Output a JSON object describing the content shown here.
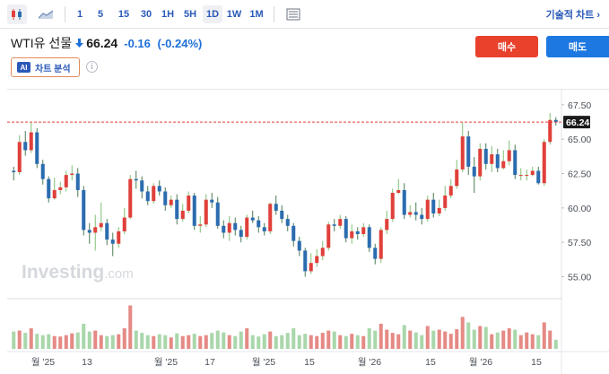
{
  "toolbar": {
    "timeframes": [
      "1",
      "5",
      "15",
      "30",
      "1H",
      "5H",
      "1D",
      "1W",
      "1M"
    ],
    "active_timeframe": "1D",
    "right_label": "기술적 차트 ›"
  },
  "instrument": {
    "name": "WTI유 선물",
    "direction": "down",
    "price": "66.24",
    "change": "-0.16",
    "change_pct": "(-0.24%)"
  },
  "actions": {
    "buy_label": "매수",
    "sell_label": "매도"
  },
  "analysis": {
    "badge": "AI",
    "label": "차트 분석"
  },
  "colors": {
    "up": "#e0403a",
    "down": "#2b6cb0",
    "price_line": "#e0403a",
    "link": "#2a59b8",
    "buy": "#e8412c",
    "sell": "#1e78e2"
  },
  "watermark": {
    "brand": "Investing",
    "suffix": ".com"
  },
  "chart_data": {
    "type": "candlestick",
    "y_ticks": [
      "67.50",
      "65.00",
      "62.50",
      "60.00",
      "57.50",
      "55.00"
    ],
    "y_tick_values": [
      67.5,
      65.0,
      62.5,
      60.0,
      57.5,
      55.0
    ],
    "ylim": [
      53.6,
      68.6
    ],
    "last_price": 66.24,
    "last_price_label": "66.24",
    "x_labels": [
      "월 '25",
      "13",
      "월 '25",
      "17",
      "월 '25",
      "15",
      "월 '26",
      "15",
      "월 '26",
      "15"
    ],
    "candles": [
      [
        62.7,
        62.6,
        63.0,
        62.0
      ],
      [
        62.6,
        64.8,
        65.3,
        62.4
      ],
      [
        64.8,
        64.2,
        65.6,
        63.8
      ],
      [
        64.2,
        65.5,
        66.2,
        64.0
      ],
      [
        65.5,
        63.2,
        65.8,
        62.9
      ],
      [
        63.2,
        62.1,
        63.5,
        61.7
      ],
      [
        62.1,
        60.7,
        62.3,
        60.4
      ],
      [
        60.7,
        61.3,
        62.2,
        60.6
      ],
      [
        61.3,
        61.5,
        61.9,
        61.0
      ],
      [
        61.5,
        62.4,
        62.7,
        61.2
      ],
      [
        62.4,
        62.5,
        63.1,
        62.0
      ],
      [
        62.5,
        61.3,
        62.9,
        60.8
      ],
      [
        61.3,
        58.4,
        61.6,
        58.0
      ],
      [
        58.4,
        58.2,
        58.9,
        57.4
      ],
      [
        58.2,
        58.6,
        59.5,
        56.9
      ],
      [
        58.6,
        58.9,
        60.4,
        58.3
      ],
      [
        58.9,
        57.7,
        59.2,
        57.3
      ],
      [
        57.7,
        57.4,
        58.2,
        56.5
      ],
      [
        57.4,
        58.3,
        58.6,
        57.1
      ],
      [
        58.3,
        59.3,
        60.0,
        58.1
      ],
      [
        59.3,
        62.1,
        62.4,
        59.2
      ],
      [
        62.1,
        62.0,
        62.7,
        61.4
      ],
      [
        62.0,
        61.2,
        62.3,
        60.7
      ],
      [
        61.2,
        60.5,
        61.6,
        60.2
      ],
      [
        60.5,
        61.6,
        61.8,
        60.3
      ],
      [
        61.6,
        61.2,
        62.0,
        60.9
      ],
      [
        61.2,
        60.2,
        61.5,
        59.8
      ],
      [
        60.2,
        60.6,
        60.9,
        60.0
      ],
      [
        60.6,
        59.2,
        61.0,
        58.8
      ],
      [
        59.2,
        59.8,
        60.3,
        59.0
      ],
      [
        59.8,
        60.9,
        61.2,
        59.6
      ],
      [
        60.9,
        58.7,
        61.1,
        58.4
      ],
      [
        58.7,
        58.8,
        59.4,
        58.2
      ],
      [
        58.8,
        60.6,
        61.0,
        58.6
      ],
      [
        60.6,
        60.4,
        61.1,
        60.0
      ],
      [
        60.4,
        58.7,
        60.8,
        58.5
      ],
      [
        58.7,
        58.2,
        59.1,
        57.8
      ],
      [
        58.2,
        58.9,
        59.4,
        57.6
      ],
      [
        58.9,
        58.4,
        59.3,
        58.0
      ],
      [
        58.4,
        57.9,
        58.7,
        57.5
      ],
      [
        57.9,
        59.3,
        59.5,
        57.7
      ],
      [
        59.3,
        59.1,
        59.8,
        58.9
      ],
      [
        59.1,
        58.6,
        59.4,
        58.2
      ],
      [
        58.6,
        58.3,
        58.9,
        58.0
      ],
      [
        58.3,
        60.3,
        60.4,
        58.1
      ],
      [
        60.3,
        59.8,
        60.9,
        59.5
      ],
      [
        59.8,
        59.2,
        60.2,
        58.9
      ],
      [
        59.2,
        58.7,
        59.5,
        58.3
      ],
      [
        58.7,
        57.6,
        58.9,
        57.2
      ],
      [
        57.6,
        56.9,
        57.9,
        56.5
      ],
      [
        56.9,
        55.4,
        57.1,
        55.0
      ],
      [
        55.4,
        56.0,
        56.7,
        55.2
      ],
      [
        56.0,
        56.5,
        57.0,
        55.7
      ],
      [
        56.5,
        57.1,
        57.6,
        56.2
      ],
      [
        57.1,
        58.8,
        59.0,
        56.9
      ],
      [
        58.8,
        58.7,
        59.2,
        58.3
      ],
      [
        58.7,
        59.2,
        59.5,
        58.5
      ],
      [
        59.2,
        57.8,
        59.4,
        57.5
      ],
      [
        57.8,
        58.3,
        58.8,
        57.4
      ],
      [
        58.3,
        58.1,
        58.6,
        57.7
      ],
      [
        58.1,
        58.6,
        58.9,
        57.9
      ],
      [
        58.6,
        57.1,
        58.8,
        56.8
      ],
      [
        57.1,
        56.3,
        57.4,
        55.9
      ],
      [
        56.3,
        58.4,
        58.6,
        56.0
      ],
      [
        58.4,
        59.2,
        59.8,
        58.1
      ],
      [
        59.2,
        61.1,
        61.4,
        59.0
      ],
      [
        61.1,
        61.3,
        62.1,
        61.0
      ],
      [
        61.3,
        59.5,
        61.8,
        59.2
      ],
      [
        59.5,
        59.7,
        60.2,
        59.3
      ],
      [
        59.7,
        59.5,
        60.4,
        59.1
      ],
      [
        59.5,
        59.2,
        60.0,
        58.8
      ],
      [
        59.2,
        60.6,
        60.9,
        59.0
      ],
      [
        60.6,
        59.6,
        61.1,
        59.3
      ],
      [
        59.6,
        60.0,
        60.6,
        59.4
      ],
      [
        60.0,
        60.9,
        61.6,
        59.8
      ],
      [
        60.9,
        61.6,
        62.1,
        60.7
      ],
      [
        61.6,
        62.8,
        63.5,
        61.4
      ],
      [
        62.8,
        65.2,
        66.2,
        62.6
      ],
      [
        65.2,
        63.0,
        65.6,
        62.4
      ],
      [
        63.0,
        62.3,
        63.7,
        61.1
      ],
      [
        62.3,
        64.3,
        64.7,
        62.0
      ],
      [
        64.3,
        63.2,
        64.7,
        62.8
      ],
      [
        63.2,
        63.9,
        64.5,
        62.6
      ],
      [
        63.9,
        62.9,
        64.3,
        62.6
      ],
      [
        62.9,
        63.4,
        64.2,
        62.8
      ],
      [
        63.4,
        64.2,
        64.9,
        63.1
      ],
      [
        64.2,
        62.4,
        64.6,
        62.1
      ],
      [
        62.4,
        62.4,
        62.9,
        62.0
      ],
      [
        62.4,
        62.4,
        62.8,
        62.0
      ],
      [
        62.4,
        62.7,
        63.0,
        62.3
      ],
      [
        62.7,
        61.8,
        63.0,
        61.7
      ],
      [
        61.8,
        64.8,
        65.0,
        61.6
      ],
      [
        64.8,
        66.4,
        66.9,
        64.6
      ],
      [
        66.4,
        66.24,
        66.6,
        66.0
      ]
    ],
    "volumes": [
      0.38,
      0.4,
      0.35,
      0.45,
      0.33,
      0.3,
      0.32,
      0.28,
      0.27,
      0.3,
      0.34,
      0.36,
      0.55,
      0.38,
      0.4,
      0.3,
      0.28,
      0.3,
      0.32,
      0.45,
      0.95,
      0.4,
      0.35,
      0.3,
      0.28,
      0.32,
      0.3,
      0.25,
      0.34,
      0.28,
      0.3,
      0.33,
      0.28,
      0.3,
      0.35,
      0.4,
      0.36,
      0.3,
      0.28,
      0.38,
      0.45,
      0.3,
      0.27,
      0.32,
      0.38,
      0.28,
      0.3,
      0.35,
      0.45,
      0.3,
      0.33,
      0.3,
      0.28,
      0.35,
      0.4,
      0.38,
      0.3,
      0.28,
      0.33,
      0.3,
      0.28,
      0.45,
      0.4,
      0.55,
      0.42,
      0.35,
      0.32,
      0.52,
      0.4,
      0.36,
      0.3,
      0.5,
      0.4,
      0.42,
      0.38,
      0.33,
      0.43,
      0.7,
      0.58,
      0.42,
      0.5,
      0.48,
      0.32,
      0.36,
      0.4,
      0.45,
      0.42,
      0.3,
      0.36,
      0.32,
      0.3,
      0.58,
      0.4,
      0.2
    ]
  }
}
